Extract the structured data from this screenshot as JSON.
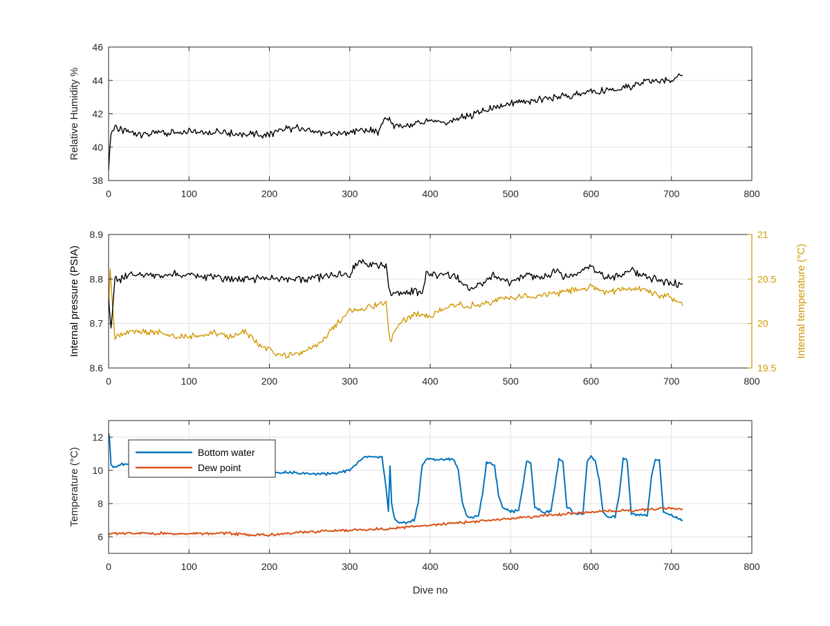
{
  "chart_data": [
    {
      "type": "line",
      "title": "",
      "xlabel": "",
      "ylabel": "Relative Humidity %",
      "xlim": [
        0,
        800
      ],
      "ylim": [
        38,
        46
      ],
      "xticks": [
        0,
        100,
        200,
        300,
        400,
        500,
        600,
        700,
        800
      ],
      "yticks": [
        38,
        40,
        42,
        44,
        46
      ],
      "grid": true,
      "series": [
        {
          "color": "#000000",
          "x": [
            0,
            3,
            8,
            15,
            30,
            50,
            80,
            100,
            130,
            160,
            190,
            200,
            230,
            260,
            280,
            300,
            320,
            335,
            345,
            355,
            370,
            400,
            420,
            450,
            470,
            500,
            530,
            560,
            600,
            630,
            660,
            690,
            700,
            714
          ],
          "y": [
            38.6,
            40.8,
            41.3,
            41.0,
            40.8,
            40.8,
            40.9,
            41.0,
            40.9,
            40.8,
            40.7,
            40.8,
            41.2,
            40.9,
            40.8,
            40.9,
            41.0,
            40.9,
            41.8,
            41.3,
            41.2,
            41.6,
            41.5,
            41.9,
            42.2,
            42.6,
            42.8,
            43.0,
            43.3,
            43.4,
            43.8,
            44.0,
            43.9,
            44.3
          ]
        }
      ]
    },
    {
      "type": "line",
      "title": "",
      "xlabel": "",
      "ylabel": "Internal pressure (PSIA)",
      "y2label": "Internal temperature (°C)",
      "xlim": [
        0,
        800
      ],
      "ylim": [
        8.6,
        8.9
      ],
      "y2lim": [
        19.5,
        21
      ],
      "xticks": [
        0,
        100,
        200,
        300,
        400,
        500,
        600,
        700,
        800
      ],
      "yticks": [
        8.6,
        8.7,
        8.8,
        8.9
      ],
      "y2ticks": [
        19.5,
        20,
        20.5,
        21
      ],
      "grid": true,
      "series": [
        {
          "axis": "left",
          "color": "#000000",
          "x": [
            0,
            3,
            8,
            15,
            30,
            60,
            100,
            150,
            200,
            250,
            280,
            300,
            310,
            330,
            345,
            350,
            360,
            380,
            390,
            395,
            410,
            430,
            440,
            450,
            465,
            480,
            500,
            520,
            540,
            555,
            570,
            600,
            620,
            650,
            680,
            700,
            714
          ],
          "y": [
            8.76,
            8.69,
            8.8,
            8.8,
            8.81,
            8.81,
            8.81,
            8.8,
            8.8,
            8.8,
            8.81,
            8.81,
            8.84,
            8.83,
            8.83,
            8.77,
            8.77,
            8.77,
            8.77,
            8.81,
            8.81,
            8.81,
            8.79,
            8.78,
            8.79,
            8.81,
            8.79,
            8.81,
            8.8,
            8.82,
            8.8,
            8.83,
            8.8,
            8.82,
            8.8,
            8.79,
            8.79
          ]
        },
        {
          "axis": "right",
          "color": "#D09700",
          "x": [
            0,
            2,
            8,
            20,
            40,
            60,
            80,
            100,
            130,
            150,
            170,
            190,
            210,
            230,
            260,
            280,
            290,
            300,
            310,
            330,
            345,
            350,
            355,
            360,
            380,
            400,
            430,
            460,
            480,
            500,
            530,
            560,
            600,
            620,
            660,
            690,
            700,
            714
          ],
          "y": [
            20.2,
            20.6,
            19.85,
            19.9,
            19.9,
            19.9,
            19.85,
            19.85,
            19.9,
            19.85,
            19.9,
            19.75,
            19.65,
            19.65,
            19.75,
            19.95,
            20.05,
            20.15,
            20.15,
            20.2,
            20.25,
            19.8,
            19.9,
            20.0,
            20.1,
            20.1,
            20.2,
            20.2,
            20.25,
            20.3,
            20.3,
            20.35,
            20.4,
            20.35,
            20.4,
            20.3,
            20.3,
            20.2
          ]
        }
      ]
    },
    {
      "type": "line",
      "title": "",
      "xlabel": "Dive no",
      "ylabel": "Temperature (°C)",
      "xlim": [
        0,
        800
      ],
      "ylim": [
        5,
        13
      ],
      "xticks": [
        0,
        100,
        200,
        300,
        400,
        500,
        600,
        700,
        800
      ],
      "yticks": [
        6,
        8,
        10,
        12
      ],
      "grid": true,
      "legend": "top-left",
      "series": [
        {
          "name": "Bottom water",
          "color": "#0072BD",
          "x": [
            0,
            1,
            3,
            6,
            20,
            50,
            100,
            150,
            200,
            250,
            280,
            300,
            310,
            320,
            340,
            345,
            348,
            350,
            352,
            355,
            360,
            370,
            380,
            385,
            390,
            395,
            400,
            410,
            420,
            430,
            435,
            440,
            445,
            450,
            460,
            465,
            470,
            475,
            480,
            485,
            490,
            500,
            510,
            515,
            520,
            525,
            530,
            540,
            550,
            555,
            560,
            565,
            570,
            580,
            590,
            595,
            600,
            605,
            610,
            615,
            620,
            630,
            635,
            640,
            645,
            650,
            660,
            670,
            675,
            680,
            685,
            690,
            700,
            714
          ],
          "y": [
            12.2,
            12.0,
            10.3,
            10.2,
            10.4,
            10.3,
            10.2,
            10.1,
            9.9,
            9.8,
            9.8,
            10.0,
            10.5,
            10.8,
            10.8,
            9.0,
            7.5,
            10.3,
            8.0,
            7.2,
            6.9,
            6.8,
            7.0,
            8.0,
            10.3,
            10.7,
            10.7,
            10.6,
            10.7,
            10.6,
            10.0,
            8.0,
            7.3,
            7.1,
            7.3,
            8.5,
            10.5,
            10.5,
            10.3,
            8.5,
            7.8,
            7.5,
            7.6,
            9.0,
            10.6,
            10.5,
            7.8,
            7.5,
            7.5,
            9.0,
            10.7,
            10.5,
            7.8,
            7.4,
            7.4,
            10.5,
            10.8,
            10.6,
            9.5,
            7.5,
            7.2,
            7.2,
            8.5,
            10.7,
            10.6,
            7.4,
            7.3,
            7.3,
            9.5,
            10.7,
            10.6,
            7.5,
            7.3,
            7.0
          ]
        },
        {
          "name": "Dew point",
          "color": "#D95319",
          "x": [
            0,
            50,
            100,
            150,
            180,
            200,
            250,
            300,
            350,
            400,
            450,
            500,
            550,
            600,
            650,
            700,
            714
          ],
          "y": [
            6.2,
            6.2,
            6.2,
            6.2,
            6.1,
            6.1,
            6.3,
            6.4,
            6.5,
            6.7,
            6.9,
            7.1,
            7.3,
            7.5,
            7.6,
            7.7,
            7.7
          ]
        }
      ]
    }
  ]
}
